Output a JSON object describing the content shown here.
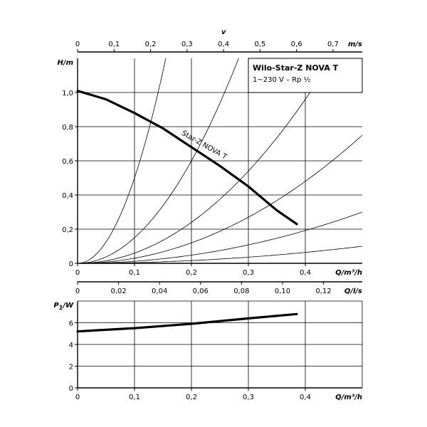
{
  "chart_data": [
    {
      "type": "line",
      "top_axis": {
        "symbol": "v",
        "unit": "m/s",
        "ticks": [
          0,
          0.1,
          0.2,
          0.3,
          0.4,
          0.5,
          0.6,
          0.7
        ],
        "tick_labels": [
          "0",
          "0,1",
          "0,2",
          "0,3",
          "0,4",
          "0,5",
          "0,6",
          "0,7"
        ]
      },
      "xlabel": "Q/m³/h",
      "ylabel": "H/m",
      "xlim": [
        0,
        0.5
      ],
      "ylim": [
        0,
        1.2
      ],
      "x_ticks": [
        0,
        0.1,
        0.2,
        0.3,
        0.4
      ],
      "x_tick_labels": [
        "0",
        "0,1",
        "0,2",
        "0,3",
        "0,4"
      ],
      "y_ticks": [
        0,
        0.2,
        0.4,
        0.6,
        0.8,
        1.0
      ],
      "y_tick_labels": [
        "0",
        "0,2",
        "0,4",
        "0,6",
        "0,8",
        "1,0"
      ],
      "grid": true,
      "legend_box": {
        "title": "Wilo-Star-Z NOVA T",
        "subtitle": "1~230 V – Rp ½"
      },
      "series": [
        {
          "name": "Star-Z NOVA T",
          "x": [
            0,
            0.05,
            0.1,
            0.15,
            0.2,
            0.25,
            0.3,
            0.35,
            0.385
          ],
          "y": [
            1.01,
            0.96,
            0.88,
            0.79,
            0.68,
            0.57,
            0.45,
            0.31,
            0.23
          ]
        }
      ],
      "system_curve_coefficients": [
        50,
        15,
        6,
        3,
        1.2,
        0.4
      ]
    },
    {
      "type": "line",
      "mid_axis": {
        "unit": "Q/l/s",
        "ticks": [
          0,
          0.02,
          0.04,
          0.06,
          0.08,
          0.1,
          0.12
        ],
        "tick_labels": [
          "0",
          "0,02",
          "0,04",
          "0,06",
          "0,08",
          "0,10",
          "0,12"
        ]
      },
      "xlabel": "Q/m³/h",
      "ylabel": "P1/W",
      "xlim": [
        0,
        0.5
      ],
      "ylim": [
        0,
        8
      ],
      "x_ticks": [
        0,
        0.1,
        0.2,
        0.3,
        0.4
      ],
      "x_tick_labels": [
        "0",
        "0,1",
        "0,2",
        "0,3",
        "0,4"
      ],
      "y_ticks": [
        0,
        2,
        4,
        6
      ],
      "y_tick_labels": [
        "0",
        "2",
        "4",
        "6"
      ],
      "grid": true,
      "series": [
        {
          "x": [
            0,
            0.1,
            0.2,
            0.3,
            0.385
          ],
          "y": [
            5.2,
            5.5,
            5.9,
            6.4,
            6.8
          ]
        }
      ]
    }
  ]
}
